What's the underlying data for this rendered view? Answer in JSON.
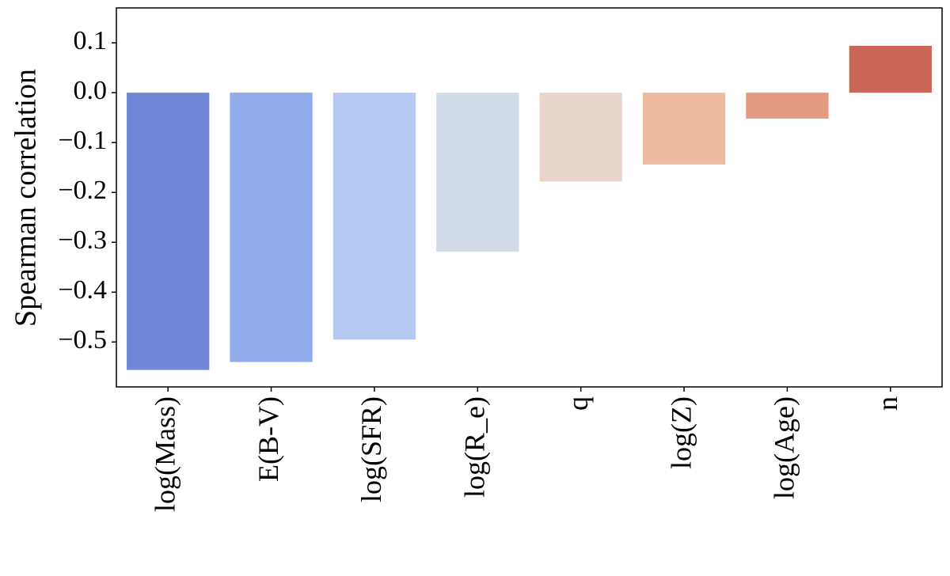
{
  "chart_data": {
    "type": "bar",
    "y_label": "Spearman correlation",
    "categories": [
      "log(Mass)",
      "E(B-V)",
      "log(SFR)",
      "log(R_e)",
      "q",
      "log(Z)",
      "log(Age)",
      "n"
    ],
    "values": [
      -0.556,
      -0.54,
      -0.495,
      -0.319,
      -0.178,
      -0.144,
      -0.052,
      0.094
    ],
    "colors": [
      "#6f87d6",
      "#8fabec",
      "#b5c9f2",
      "#d2dbe8",
      "#e8d6cc",
      "#eebaa0",
      "#e29a80",
      "#cb6658"
    ],
    "ylim": [
      -0.59,
      0.17
    ],
    "yticks": [
      {
        "value": -0.5,
        "label": "−0.5"
      },
      {
        "value": -0.4,
        "label": "−0.4"
      },
      {
        "value": -0.3,
        "label": "−0.3"
      },
      {
        "value": -0.2,
        "label": "−0.2"
      },
      {
        "value": -0.1,
        "label": "−0.1"
      },
      {
        "value": 0,
        "label": "0.0"
      },
      0.1
    ],
    "grid": false
  }
}
